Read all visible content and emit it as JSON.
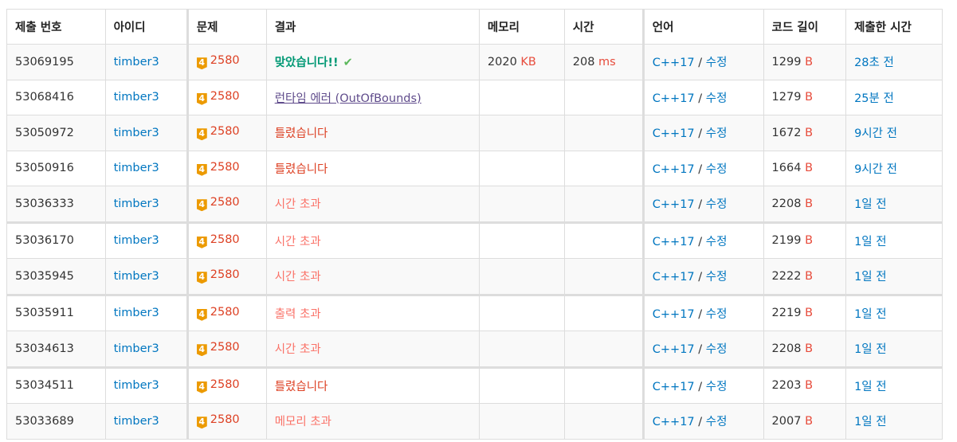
{
  "headers": [
    "제출 번호",
    "아이디",
    "문제",
    "결과",
    "메모리",
    "시간",
    "언어",
    "코드 길이",
    "제출한 시간"
  ],
  "rows": [
    {
      "id": "53069195",
      "user": "timber3",
      "tier": "4",
      "problem": "2580",
      "result": "맞았습니다!!",
      "rtype": "ac",
      "memory": "2020",
      "memory_unit": "KB",
      "time": "208",
      "time_unit": "ms",
      "lang": "C++17",
      "edit": "수정",
      "len": "1299",
      "len_unit": "B",
      "ago": "28초 전"
    },
    {
      "id": "53068416",
      "user": "timber3",
      "tier": "4",
      "problem": "2580",
      "result": "런타임 에러 (OutOfBounds)",
      "rtype": "rte",
      "lang": "C++17",
      "edit": "수정",
      "len": "1279",
      "len_unit": "B",
      "ago": "25분 전"
    },
    {
      "id": "53050972",
      "user": "timber3",
      "tier": "4",
      "problem": "2580",
      "result": "틀렸습니다",
      "rtype": "wa",
      "lang": "C++17",
      "edit": "수정",
      "len": "1672",
      "len_unit": "B",
      "ago": "9시간 전"
    },
    {
      "id": "53050916",
      "user": "timber3",
      "tier": "4",
      "problem": "2580",
      "result": "틀렸습니다",
      "rtype": "wa",
      "lang": "C++17",
      "edit": "수정",
      "len": "1664",
      "len_unit": "B",
      "ago": "9시간 전"
    },
    {
      "id": "53036333",
      "user": "timber3",
      "tier": "4",
      "problem": "2580",
      "result": "시간 초과",
      "rtype": "tle",
      "lang": "C++17",
      "edit": "수정",
      "len": "2208",
      "len_unit": "B",
      "ago": "1일 전"
    },
    {
      "id": "53036170",
      "user": "timber3",
      "tier": "4",
      "problem": "2580",
      "result": "시간 초과",
      "rtype": "tle",
      "lang": "C++17",
      "edit": "수정",
      "len": "2199",
      "len_unit": "B",
      "ago": "1일 전"
    },
    {
      "id": "53035945",
      "user": "timber3",
      "tier": "4",
      "problem": "2580",
      "result": "시간 초과",
      "rtype": "tle",
      "lang": "C++17",
      "edit": "수정",
      "len": "2222",
      "len_unit": "B",
      "ago": "1일 전"
    },
    {
      "id": "53035911",
      "user": "timber3",
      "tier": "4",
      "problem": "2580",
      "result": "출력 초과",
      "rtype": "tle",
      "lang": "C++17",
      "edit": "수정",
      "len": "2219",
      "len_unit": "B",
      "ago": "1일 전"
    },
    {
      "id": "53034613",
      "user": "timber3",
      "tier": "4",
      "problem": "2580",
      "result": "시간 초과",
      "rtype": "tle",
      "lang": "C++17",
      "edit": "수정",
      "len": "2208",
      "len_unit": "B",
      "ago": "1일 전"
    },
    {
      "id": "53034511",
      "user": "timber3",
      "tier": "4",
      "problem": "2580",
      "result": "틀렸습니다",
      "rtype": "wa",
      "lang": "C++17",
      "edit": "수정",
      "len": "2203",
      "len_unit": "B",
      "ago": "1일 전"
    },
    {
      "id": "53033689",
      "user": "timber3",
      "tier": "4",
      "problem": "2580",
      "result": "메모리 초과",
      "rtype": "tle",
      "lang": "C++17",
      "edit": "수정",
      "len": "2007",
      "len_unit": "B",
      "ago": "1일 전"
    }
  ],
  "colors": {
    "accepted": "#009874",
    "wrong": "#dd4124",
    "tle": "#fa7268",
    "runtime": "#5f4b8b",
    "link": "#0076c0",
    "tier_gold": "#ec9a00"
  },
  "icons": {
    "accepted": "check-icon",
    "tier": "tier-badge-icon"
  }
}
